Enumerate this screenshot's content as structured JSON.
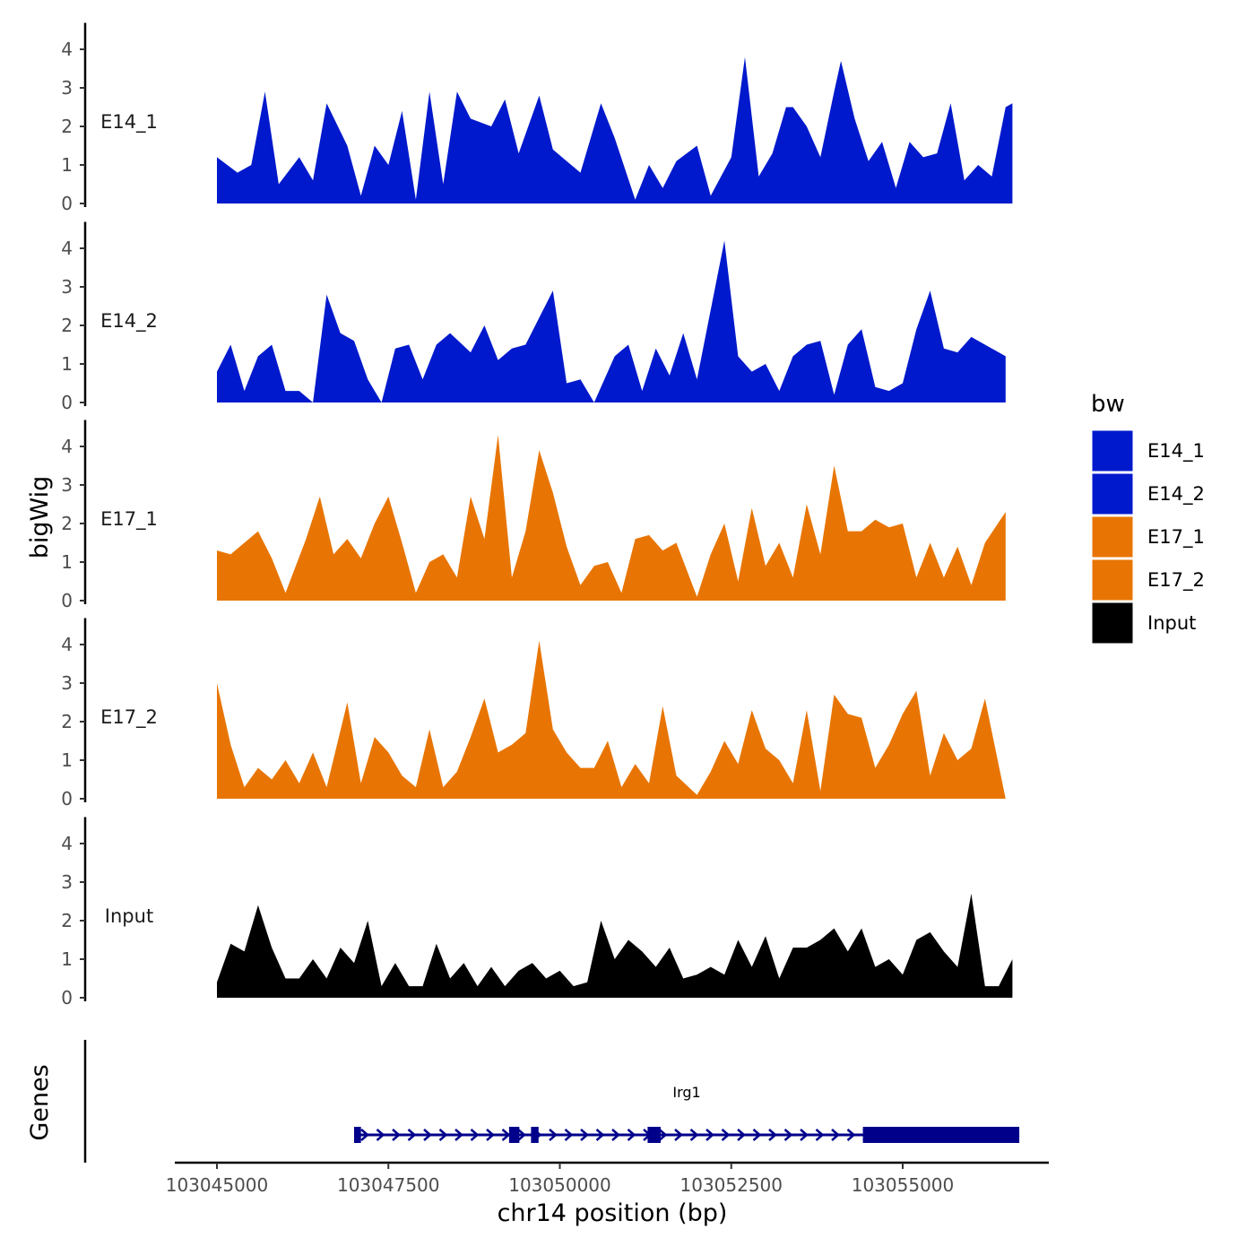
{
  "chart_data": {
    "type": "area",
    "title": "",
    "xlabel": "chr14 position (bp)",
    "ylabel": "bigWig",
    "genes_label": "Genes",
    "xlim": [
      103044000,
      103057000
    ],
    "x_ticks": [
      103045000,
      103047500,
      103050000,
      103052500,
      103055000
    ],
    "x_tick_labels": [
      "103045000",
      "103047500",
      "103050000",
      "103052500",
      "103055000"
    ],
    "ylim": [
      0,
      4.5
    ],
    "y_ticks": [
      0,
      1,
      2,
      3,
      4
    ],
    "y_tick_labels": [
      "0",
      "1",
      "2",
      "3",
      "4"
    ],
    "legend": {
      "title": "bw",
      "entries": [
        {
          "label": "E14_1",
          "color": "#0019CC"
        },
        {
          "label": "E14_2",
          "color": "#0019CC"
        },
        {
          "label": "E17_1",
          "color": "#E87503"
        },
        {
          "label": "E17_2",
          "color": "#E87503"
        },
        {
          "label": "Input",
          "color": "#000000"
        }
      ]
    },
    "series": [
      {
        "name": "E14_1",
        "color": "#0019CC",
        "x": [
          103045000,
          103045300,
          103045500,
          103045700,
          103045900,
          103046200,
          103046400,
          103046600,
          103046900,
          103047100,
          103047300,
          103047500,
          103047700,
          103047900,
          103048100,
          103048300,
          103048500,
          103048700,
          103049000,
          103049200,
          103049400,
          103049700,
          103049900,
          103050100,
          103050300,
          103050600,
          103050800,
          103051100,
          103051300,
          103051500,
          103051700,
          103052000,
          103052200,
          103052500,
          103052700,
          103052900,
          103053100,
          103053300,
          103053400,
          103053600,
          103053800,
          103054000,
          103054100,
          103054300,
          103054500,
          103054700,
          103054900,
          103055100,
          103055300,
          103055500,
          103055700,
          103055900,
          103056100,
          103056300,
          103056500,
          103056600
        ],
        "y": [
          1.2,
          0.8,
          1.0,
          2.9,
          0.5,
          1.2,
          0.6,
          2.6,
          1.5,
          0.2,
          1.5,
          1.0,
          2.4,
          0.1,
          2.9,
          0.5,
          2.9,
          2.2,
          2.0,
          2.7,
          1.3,
          2.8,
          1.4,
          1.1,
          0.8,
          2.6,
          1.7,
          0.1,
          1.0,
          0.4,
          1.1,
          1.5,
          0.2,
          1.2,
          3.8,
          0.7,
          1.3,
          2.5,
          2.5,
          2.0,
          1.2,
          2.9,
          3.7,
          2.2,
          1.1,
          1.6,
          0.4,
          1.6,
          1.2,
          1.3,
          2.6,
          0.6,
          1.0,
          0.7,
          2.5,
          2.6
        ]
      },
      {
        "name": "E14_2",
        "color": "#0019CC",
        "x": [
          103045000,
          103045200,
          103045400,
          103045600,
          103045800,
          103046000,
          103046200,
          103046400,
          103046600,
          103046800,
          103047000,
          103047200,
          103047400,
          103047600,
          103047800,
          103048000,
          103048200,
          103048400,
          103048700,
          103048900,
          103049100,
          103049300,
          103049500,
          103049700,
          103049900,
          103050100,
          103050300,
          103050500,
          103050800,
          103051000,
          103051200,
          103051400,
          103051600,
          103051800,
          103052000,
          103052200,
          103052400,
          103052600,
          103052800,
          103053000,
          103053200,
          103053400,
          103053600,
          103053800,
          103054000,
          103054200,
          103054400,
          103054600,
          103054800,
          103055000,
          103055200,
          103055400,
          103055600,
          103055800,
          103056000,
          103056200,
          103056500
        ],
        "y": [
          0.8,
          1.5,
          0.3,
          1.2,
          1.5,
          0.3,
          0.3,
          0.0,
          2.8,
          1.8,
          1.6,
          0.6,
          0.0,
          1.4,
          1.5,
          0.6,
          1.5,
          1.8,
          1.3,
          2.0,
          1.1,
          1.4,
          1.5,
          2.2,
          2.9,
          0.5,
          0.6,
          0.0,
          1.2,
          1.5,
          0.3,
          1.4,
          0.7,
          1.8,
          0.6,
          2.4,
          4.2,
          1.2,
          0.8,
          1.0,
          0.3,
          1.2,
          1.5,
          1.6,
          0.2,
          1.5,
          1.9,
          0.4,
          0.3,
          0.5,
          1.9,
          2.9,
          1.4,
          1.3,
          1.7,
          1.5,
          1.2
        ]
      },
      {
        "name": "E17_1",
        "color": "#E87503",
        "x": [
          103045000,
          103045200,
          103045400,
          103045600,
          103045800,
          103046000,
          103046300,
          103046500,
          103046700,
          103046900,
          103047100,
          103047300,
          103047500,
          103047700,
          103047900,
          103048100,
          103048300,
          103048500,
          103048700,
          103048900,
          103049100,
          103049300,
          103049500,
          103049700,
          103049900,
          103050100,
          103050300,
          103050500,
          103050700,
          103050900,
          103051100,
          103051300,
          103051500,
          103051700,
          103052000,
          103052200,
          103052400,
          103052600,
          103052800,
          103053000,
          103053200,
          103053400,
          103053600,
          103053800,
          103054000,
          103054200,
          103054400,
          103054600,
          103054800,
          103055000,
          103055200,
          103055400,
          103055600,
          103055800,
          103056000,
          103056200,
          103056500
        ],
        "y": [
          1.3,
          1.2,
          1.5,
          1.8,
          1.1,
          0.2,
          1.6,
          2.7,
          1.2,
          1.6,
          1.1,
          2.0,
          2.7,
          1.5,
          0.2,
          1.0,
          1.2,
          0.6,
          2.7,
          1.6,
          4.3,
          0.6,
          1.8,
          3.9,
          2.8,
          1.4,
          0.4,
          0.9,
          1.0,
          0.2,
          1.6,
          1.7,
          1.3,
          1.5,
          0.1,
          1.2,
          2.0,
          0.5,
          2.4,
          0.9,
          1.5,
          0.6,
          2.5,
          1.2,
          3.5,
          1.8,
          1.8,
          2.1,
          1.9,
          2.0,
          0.6,
          1.5,
          0.6,
          1.4,
          0.4,
          1.5,
          2.3
        ]
      },
      {
        "name": "E17_2",
        "color": "#E87503",
        "x": [
          103045000,
          103045200,
          103045400,
          103045600,
          103045800,
          103046000,
          103046200,
          103046400,
          103046600,
          103046900,
          103047100,
          103047300,
          103047500,
          103047700,
          103047900,
          103048100,
          103048300,
          103048500,
          103048700,
          103048900,
          103049100,
          103049300,
          103049500,
          103049700,
          103049900,
          103050100,
          103050300,
          103050500,
          103050700,
          103050900,
          103051100,
          103051300,
          103051500,
          103051700,
          103052000,
          103052200,
          103052400,
          103052600,
          103052800,
          103053000,
          103053200,
          103053400,
          103053600,
          103053800,
          103054000,
          103054200,
          103054400,
          103054600,
          103054800,
          103055000,
          103055200,
          103055400,
          103055600,
          103055800,
          103056000,
          103056200,
          103056500
        ],
        "y": [
          3.0,
          1.4,
          0.3,
          0.8,
          0.5,
          1.0,
          0.4,
          1.2,
          0.3,
          2.5,
          0.4,
          1.6,
          1.2,
          0.6,
          0.3,
          1.8,
          0.3,
          0.7,
          1.6,
          2.6,
          1.2,
          1.4,
          1.7,
          4.1,
          1.8,
          1.2,
          0.8,
          0.8,
          1.5,
          0.3,
          0.9,
          0.4,
          2.4,
          0.6,
          0.1,
          0.7,
          1.5,
          0.9,
          2.3,
          1.3,
          1.0,
          0.4,
          2.3,
          0.2,
          2.7,
          2.2,
          2.1,
          0.8,
          1.4,
          2.2,
          2.8,
          0.6,
          1.7,
          1.0,
          1.3,
          2.6,
          0.0
        ]
      },
      {
        "name": "Input",
        "color": "#000000",
        "x": [
          103045000,
          103045200,
          103045400,
          103045600,
          103045800,
          103046000,
          103046200,
          103046400,
          103046600,
          103046800,
          103047000,
          103047200,
          103047400,
          103047600,
          103047800,
          103048000,
          103048200,
          103048400,
          103048600,
          103048800,
          103049000,
          103049200,
          103049400,
          103049600,
          103049800,
          103050000,
          103050200,
          103050400,
          103050600,
          103050800,
          103051000,
          103051200,
          103051400,
          103051600,
          103051800,
          103052000,
          103052200,
          103052400,
          103052600,
          103052800,
          103053000,
          103053200,
          103053400,
          103053600,
          103053800,
          103054000,
          103054200,
          103054400,
          103054600,
          103054800,
          103055000,
          103055200,
          103055400,
          103055600,
          103055800,
          103056000,
          103056200,
          103056400,
          103056600
        ],
        "y": [
          0.4,
          1.4,
          1.2,
          2.4,
          1.3,
          0.5,
          0.5,
          1.0,
          0.5,
          1.3,
          0.9,
          2.0,
          0.3,
          0.9,
          0.3,
          0.3,
          1.4,
          0.5,
          0.9,
          0.3,
          0.8,
          0.3,
          0.7,
          0.9,
          0.5,
          0.7,
          0.3,
          0.4,
          2.0,
          1.0,
          1.5,
          1.2,
          0.8,
          1.3,
          0.5,
          0.6,
          0.8,
          0.6,
          1.5,
          0.8,
          1.6,
          0.5,
          1.3,
          1.3,
          1.5,
          1.8,
          1.2,
          1.8,
          0.8,
          1.0,
          0.6,
          1.5,
          1.7,
          1.2,
          0.8,
          2.7,
          0.3,
          0.3,
          1.0
        ]
      }
    ],
    "genes": [
      {
        "name": "Irg1",
        "start": 103047000,
        "end": 103056700,
        "strand": "+",
        "exons": [
          [
            103047000,
            103047100
          ],
          [
            103049260,
            103049410
          ],
          [
            103049580,
            103049690
          ],
          [
            103051280,
            103051470
          ],
          [
            103054420,
            103056700
          ]
        ]
      }
    ]
  }
}
